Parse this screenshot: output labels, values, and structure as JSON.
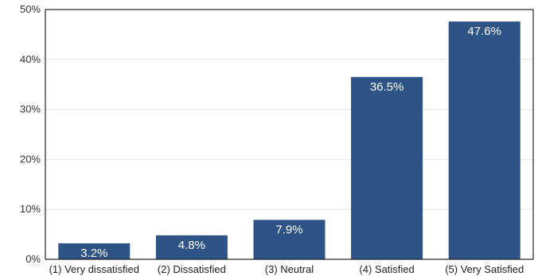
{
  "chart_data": {
    "type": "bar",
    "categories": [
      "(1) Very dissatisfied",
      "(2) Dissatisfied",
      "(3) Neutral",
      "(4) Satisfied",
      "(5) Very Satisfied"
    ],
    "values": [
      3.2,
      4.8,
      7.9,
      36.5,
      47.6
    ],
    "data_labels": [
      "3.2%",
      "4.8%",
      "7.9%",
      "36.5%",
      "47.6%"
    ],
    "title": "",
    "xlabel": "",
    "ylabel": "",
    "ylim": [
      0,
      50
    ],
    "yticks": [
      0,
      10,
      20,
      30,
      40,
      50
    ],
    "ytick_labels": [
      "0%",
      "10%",
      "20%",
      "30%",
      "40%",
      "50%"
    ],
    "grid": true,
    "bar_color": "#2e5387",
    "grid_color": "#e6e6e6"
  }
}
